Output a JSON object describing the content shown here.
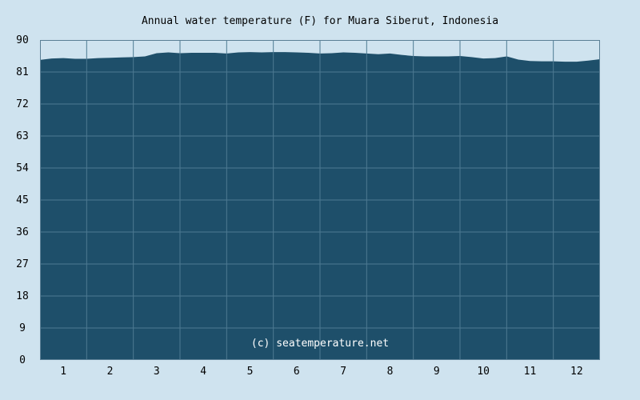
{
  "chart_data": {
    "type": "area",
    "title": "Annual water temperature (F) for Muara Siberut, Indonesia",
    "xlabel": "",
    "ylabel": "",
    "ylim": [
      0,
      90
    ],
    "yticks": [
      0,
      9,
      18,
      27,
      36,
      45,
      54,
      63,
      72,
      81,
      90
    ],
    "xlim": [
      0.5,
      12.5
    ],
    "xticks": [
      1,
      2,
      3,
      4,
      5,
      6,
      7,
      8,
      9,
      10,
      11,
      12
    ],
    "grid": true,
    "legend": "none",
    "annotation": "(c) seatemperature.net",
    "series": [
      {
        "x": [
          0.5,
          0.75,
          1.0,
          1.25,
          1.5,
          1.75,
          2.0,
          2.25,
          2.5,
          2.75,
          3.0,
          3.25,
          3.5,
          3.75,
          4.0,
          4.25,
          4.5,
          4.75,
          5.0,
          5.25,
          5.5,
          5.75,
          6.0,
          6.25,
          6.5,
          6.75,
          7.0,
          7.25,
          7.5,
          7.75,
          8.0,
          8.25,
          8.5,
          8.75,
          9.0,
          9.25,
          9.5,
          9.75,
          10.0,
          10.25,
          10.5,
          10.75,
          11.0,
          11.25,
          11.5,
          11.75,
          12.0,
          12.25,
          12.5
        ],
        "y": [
          84.4,
          84.8,
          84.9,
          84.7,
          84.7,
          84.9,
          85.0,
          85.1,
          85.2,
          85.4,
          86.3,
          86.5,
          86.3,
          86.4,
          86.4,
          86.4,
          86.2,
          86.5,
          86.6,
          86.5,
          86.6,
          86.6,
          86.5,
          86.4,
          86.2,
          86.3,
          86.5,
          86.4,
          86.2,
          86.0,
          86.2,
          85.8,
          85.5,
          85.4,
          85.4,
          85.4,
          85.5,
          85.2,
          84.8,
          84.9,
          85.4,
          84.5,
          84.1,
          84.0,
          84.0,
          83.9,
          83.9,
          84.2,
          84.6
        ]
      }
    ],
    "colors": {
      "background": "#cfe3ef",
      "plot_background": "#cfe3ef",
      "fill": "#1e4f6a",
      "grid": "#4d7a92",
      "border": "#5a7f95"
    }
  }
}
